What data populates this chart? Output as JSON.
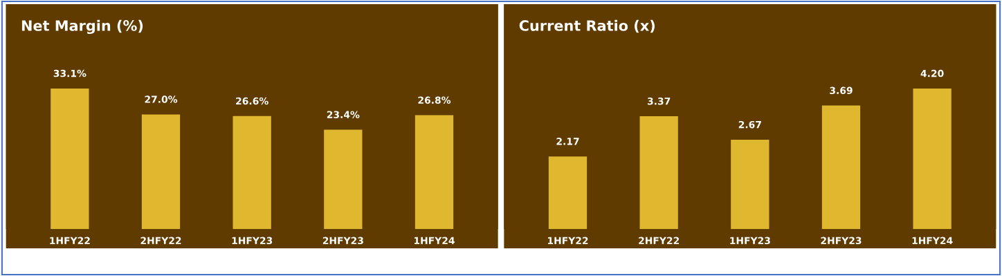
{
  "chart_data": [
    {
      "type": "bar",
      "title": "Net Margin (%)",
      "categories": [
        "1HFY22",
        "2HFY22",
        "1HFY23",
        "2HFY23",
        "1HFY24"
      ],
      "values": [
        33.1,
        27.0,
        26.6,
        23.4,
        26.8
      ],
      "color": "#e0b830",
      "value_labels": [
        "33.1%",
        "27.0%",
        "26.6%",
        "23.4%",
        "26.8%"
      ]
    },
    {
      "type": "bar",
      "title": "Current Ratio (x)",
      "categories": [
        "1HFY22",
        "2HFY22",
        "1HFY23",
        "2HFY23",
        "1HFY24"
      ],
      "values": [
        2.17,
        3.37,
        2.67,
        3.69,
        4.2
      ],
      "color": "#e0b830",
      "value_labels": [
        "2.17",
        "3.37",
        "2.67",
        "3.69",
        "4.20"
      ]
    }
  ]
}
